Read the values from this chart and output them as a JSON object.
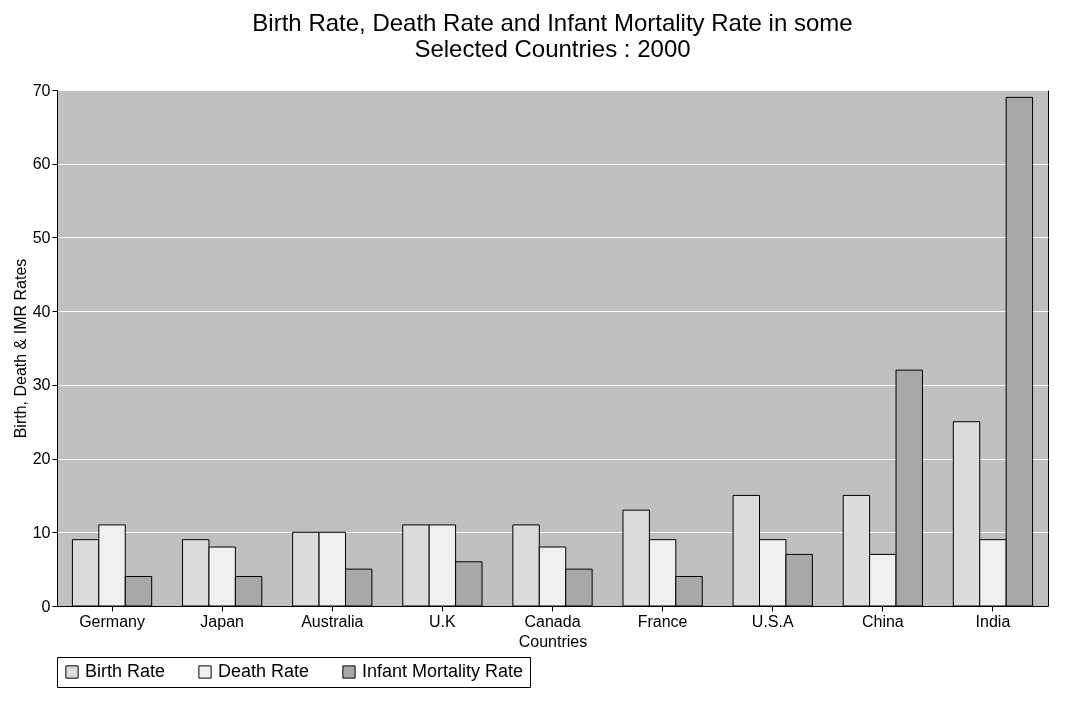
{
  "chart_data": {
    "type": "bar",
    "title": "Birth Rate, Death Rate and Infant Mortality Rate in some Selected Countries : 2000",
    "xlabel": "Countries",
    "ylabel": "Birth, Death & IMR Rates",
    "categories": [
      "Germany",
      "Japan",
      "Australia",
      "U.K",
      "Canada",
      "France",
      "U.S.A",
      "China",
      "India"
    ],
    "series": [
      {
        "name": "Birth Rate",
        "color": "#dcdcdc",
        "values": [
          9,
          9,
          10,
          11,
          11,
          13,
          15,
          15,
          25
        ]
      },
      {
        "name": "Death Rate",
        "color": "#f0f0f0",
        "values": [
          11,
          8,
          10,
          11,
          8,
          9,
          9,
          7,
          9
        ]
      },
      {
        "name": "Infant Mortality Rate",
        "color": "#a8a8a8",
        "values": [
          4,
          4,
          5,
          6,
          5,
          4,
          7,
          32,
          69
        ]
      }
    ],
    "ylim": [
      0,
      70
    ],
    "yticks": [
      0,
      10,
      20,
      30,
      40,
      50,
      60,
      70
    ],
    "grid": "y",
    "legend": "bottom"
  }
}
